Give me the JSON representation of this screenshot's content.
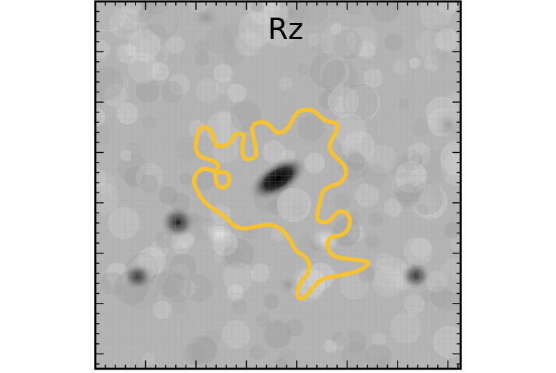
{
  "panel": {
    "band_label": "Rz"
  },
  "colors": {
    "contour": "#f5c232",
    "frame": "#000000",
    "background_gray": "#b4b4b4"
  }
}
